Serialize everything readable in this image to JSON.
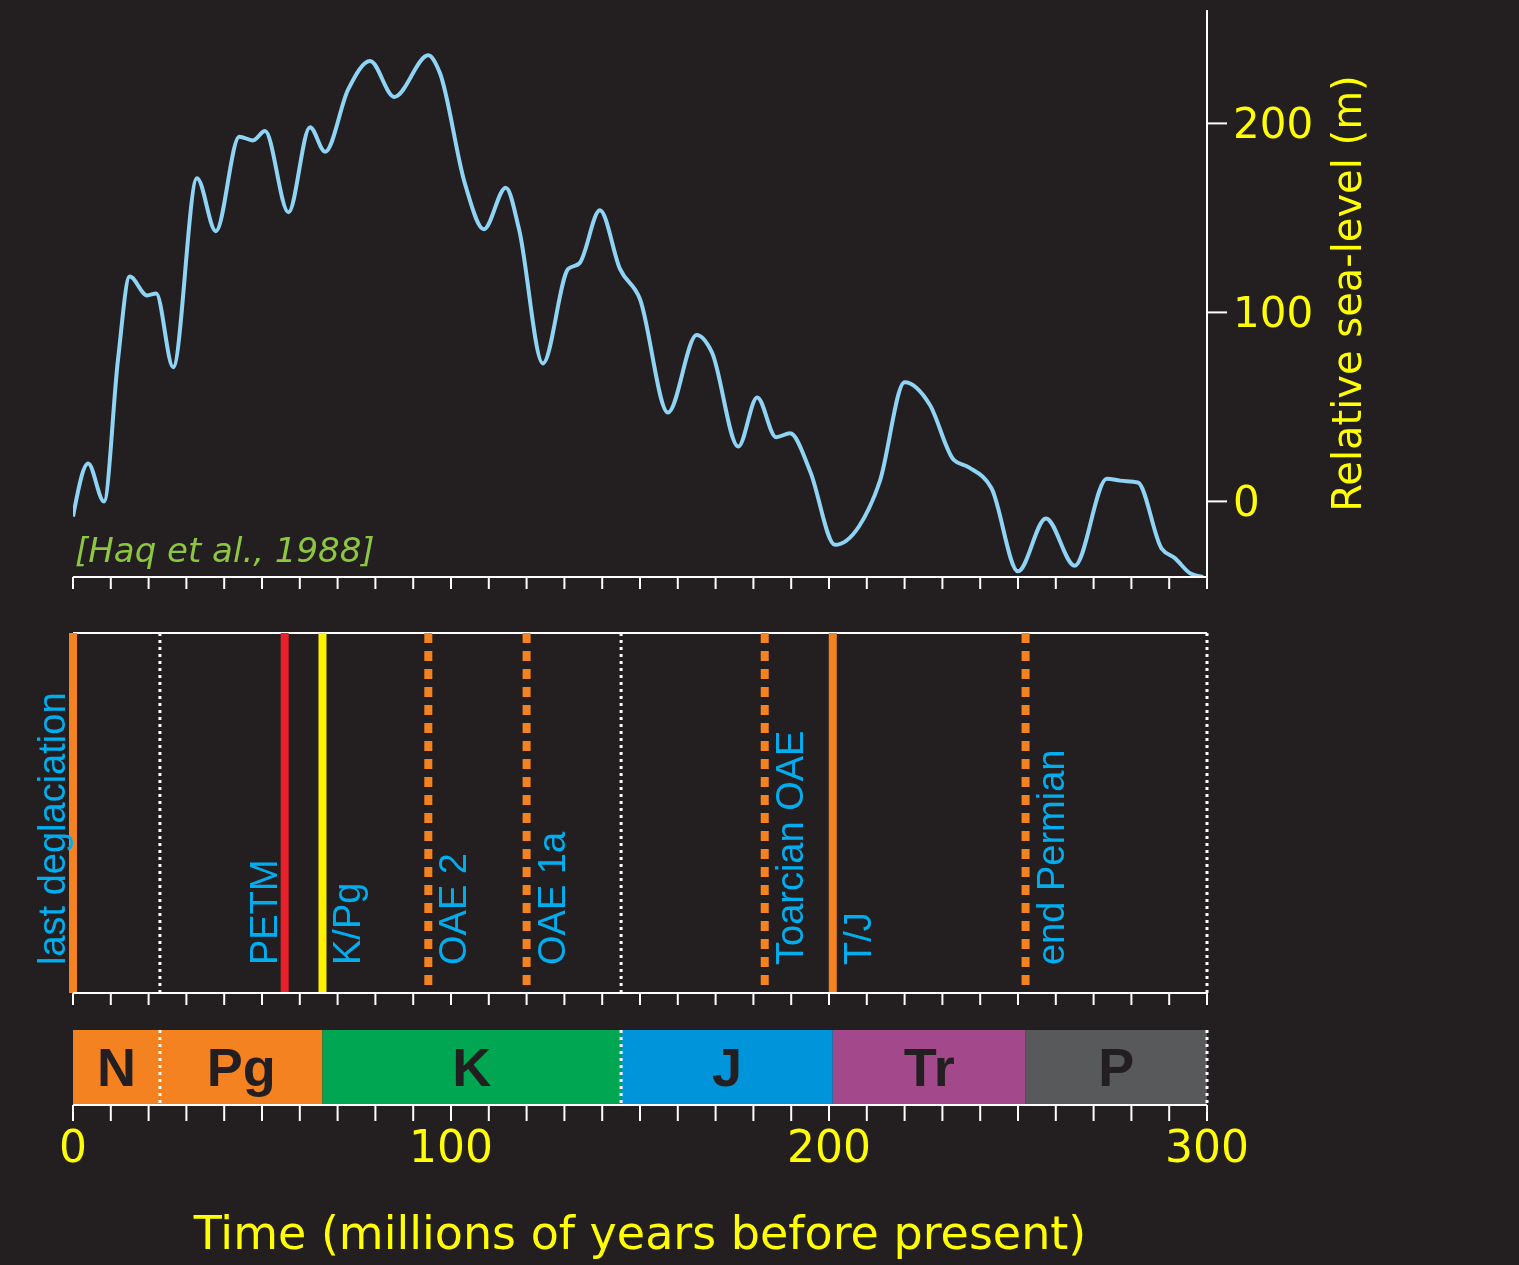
{
  "chart_data": [
    {
      "type": "line",
      "ylabel": "Relative sea-level (m)",
      "annotations": [
        "[Haq et al., 1988]"
      ],
      "series": [
        {
          "color": "#8fd3f5",
          "x": [
            0,
            4,
            8.2,
            11.9,
            15,
            19.6,
            22,
            26.5,
            32.8,
            37.8,
            44,
            47.6,
            50.8,
            57,
            62.7,
            66.7,
            72.8,
            78.6,
            85,
            94,
            97,
            103.7,
            108.7,
            114.5,
            118,
            124.3,
            131,
            134,
            139.4,
            144.7,
            150,
            157.4,
            165,
            169,
            176,
            181,
            186,
            189.7,
            195,
            201.6,
            208,
            213.5,
            220,
            226.7,
            233,
            237,
            243,
            250,
            257.4,
            265,
            273.5,
            277,
            281.7,
            288,
            291.5,
            295.5,
            299
          ],
          "values": [
            -8,
            20,
            0,
            75,
            119,
            109,
            110,
            71,
            171,
            143,
            193,
            191,
            196,
            153,
            198,
            185,
            218,
            233,
            214,
            236,
            227,
            168,
            144,
            166,
            144,
            73,
            123,
            126,
            154,
            123,
            107,
            47,
            88,
            79,
            29,
            55,
            34,
            36,
            16,
            -23,
            -13,
            11,
            63,
            51,
            22,
            18,
            7,
            -37,
            -9,
            -34,
            12,
            11,
            10,
            -25,
            -30,
            -38,
            -40
          ]
        }
      ],
      "xlim": [
        0,
        300
      ],
      "xticks": [
        0,
        10,
        20,
        30,
        40,
        50,
        60,
        70,
        80,
        90,
        100,
        110,
        120,
        130,
        140,
        150,
        160,
        170,
        180,
        190,
        200,
        210,
        220,
        230,
        240,
        250,
        260,
        270,
        280,
        290,
        300
      ],
      "ylim": [
        -40,
        260
      ],
      "yticks": [
        0,
        100,
        200
      ],
      "tick_labels": "y",
      "grid": false,
      "legend": false,
      "marker": "none",
      "line_style": "solid"
    },
    {
      "type": "bar",
      "orientation": "horizontal",
      "stacked": true,
      "xlabel": "Time (millions of years before present)",
      "xlim": [
        0,
        300
      ],
      "xticks": [
        0,
        {
          "value": 10,
          "label": null
        },
        {
          "value": 20,
          "label": null
        },
        {
          "value": 30,
          "label": null
        },
        {
          "value": 40,
          "label": null
        },
        {
          "value": 50,
          "label": null
        },
        {
          "value": 60,
          "label": null
        },
        {
          "value": 70,
          "label": null
        },
        {
          "value": 80,
          "label": null
        },
        {
          "value": 90,
          "label": null
        },
        100,
        {
          "value": 110,
          "label": null
        },
        {
          "value": 120,
          "label": null
        },
        {
          "value": 130,
          "label": null
        },
        {
          "value": 140,
          "label": null
        },
        {
          "value": 150,
          "label": null
        },
        {
          "value": 160,
          "label": null
        },
        {
          "value": 170,
          "label": null
        },
        {
          "value": 180,
          "label": null
        },
        {
          "value": 190,
          "label": null
        },
        200,
        {
          "value": 210,
          "label": null
        },
        {
          "value": 220,
          "label": null
        },
        {
          "value": 230,
          "label": null
        },
        {
          "value": 240,
          "label": null
        },
        {
          "value": 250,
          "label": null
        },
        {
          "value": 260,
          "label": null
        },
        {
          "value": 270,
          "label": null
        },
        {
          "value": 280,
          "label": null
        },
        {
          "value": 290,
          "label": null
        },
        300
      ],
      "categories": [
        null
      ],
      "series": [
        {
          "name": "N",
          "color": "#f58220",
          "values": [
            23
          ]
        },
        {
          "name": "Pg",
          "color": "#f58220",
          "values": [
            43
          ]
        },
        {
          "name": "K",
          "color": "#00a651",
          "values": [
            79
          ]
        },
        {
          "name": "J",
          "color": "#0095da",
          "values": [
            56
          ]
        },
        {
          "name": "Tr",
          "color": "#a3498b",
          "values": [
            51
          ]
        },
        {
          "name": "P",
          "color": "#58595b",
          "values": [
            48
          ]
        }
      ],
      "ref_lines": [
        {
          "axis": "x",
          "value": 0,
          "label": "last deglaciation",
          "color": "#f58220",
          "line_style": "solid"
        },
        {
          "axis": "x",
          "value": 23,
          "color": "#ffffff",
          "line_style": "dotted"
        },
        {
          "axis": "x",
          "value": 56,
          "label": "PETM",
          "color": "#e8202a",
          "line_style": "solid"
        },
        {
          "axis": "x",
          "value": 66,
          "label": "K/Pg",
          "color": "#fff200",
          "line_style": "solid"
        },
        {
          "axis": "x",
          "value": 94,
          "label": "OAE 2",
          "color": "#f58220",
          "line_style": "dashed"
        },
        {
          "axis": "x",
          "value": 120,
          "label": "OAE 1a",
          "color": "#f58220",
          "line_style": "dashed"
        },
        {
          "axis": "x",
          "value": 145,
          "color": "#ffffff",
          "line_style": "dotted"
        },
        {
          "axis": "x",
          "value": 183,
          "label": "Toarcian OAE",
          "color": "#f58220",
          "line_style": "dashed"
        },
        {
          "axis": "x",
          "value": 201,
          "label": "T/J",
          "color": "#f58220",
          "line_style": "solid"
        },
        {
          "axis": "x",
          "value": 252,
          "label": "end Permian",
          "color": "#f58220",
          "line_style": "dashed"
        },
        {
          "axis": "x",
          "value": 300,
          "color": "#ffffff",
          "line_style": "dotted"
        }
      ]
    }
  ]
}
